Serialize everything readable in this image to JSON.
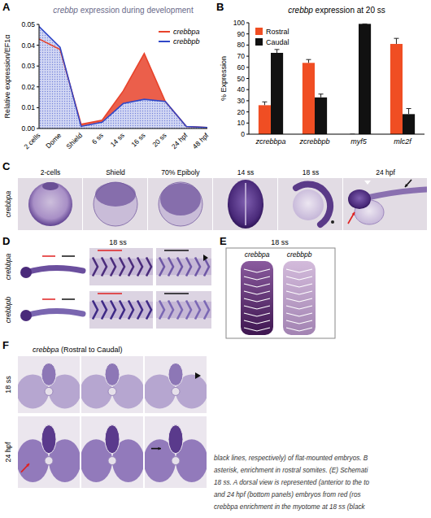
{
  "panel_letters": [
    "A",
    "B",
    "C",
    "D",
    "E",
    "F"
  ],
  "chart_data": [
    {
      "type": "area",
      "title": "crebbp expression during development",
      "y_label": "Relative expression/EF1α",
      "categories": [
        "2 cells",
        "Dome",
        "Shield",
        "6 ss",
        "14 ss",
        "16 ss",
        "20 ss",
        "24 hpf",
        "48 hpf"
      ],
      "series": [
        {
          "name": "crebbpa",
          "color": "#e8432b",
          "values": [
            0.043,
            0.038,
            0.002,
            0.004,
            0.018,
            0.036,
            0.013,
            0.001,
            0.0005
          ]
        },
        {
          "name": "crebbpb",
          "color": "#3048c8",
          "values": [
            0.049,
            0.039,
            0.001,
            0.003,
            0.012,
            0.014,
            0.013,
            0.001,
            0.0005
          ]
        }
      ],
      "ylim": [
        0,
        0.05
      ],
      "yticks": [
        {
          "value": 0,
          "label": "0.00"
        },
        0.01,
        0.02,
        0.03,
        0.04,
        0.05
      ],
      "legend": "upper right"
    },
    {
      "type": "bar",
      "title": "crebbp expression at 20 ss",
      "y_label": "% Expression",
      "categories": [
        "zcrebbpa",
        "zcrebbpb",
        "myf5",
        "mlc2f"
      ],
      "series": [
        {
          "name": "Rostral",
          "color": "#f04e23",
          "values": [
            26,
            64,
            0,
            81
          ],
          "errors": [
            3,
            3,
            0,
            5
          ]
        },
        {
          "name": "Caudal",
          "color": "#111111",
          "values": [
            73,
            33,
            99,
            18
          ],
          "errors": [
            3,
            3,
            0,
            5
          ]
        }
      ],
      "ylim": [
        0,
        100
      ],
      "yticks": [
        0,
        10,
        20,
        30,
        40,
        50,
        60,
        70,
        80,
        90,
        100
      ],
      "legend": "upper left"
    }
  ],
  "panel_c": {
    "gene": "crebbpa",
    "stages": [
      "2-cells",
      "Shield",
      "70% Epiboly",
      "14 ss",
      "18 ss",
      "24 hpf"
    ]
  },
  "panel_d": {
    "stage": "18 ss",
    "genes": [
      "crebbpa",
      "crebbpb"
    ]
  },
  "panel_e": {
    "stage": "18 ss",
    "genes": [
      "crebbpa",
      "crebbpb"
    ]
  },
  "panel_f": {
    "title": "crebbpa (Rostral to Caudal)",
    "stages": [
      "18 ss",
      "24 hpf"
    ]
  },
  "caption": [
    "black lines, respectively) of flat-mounted embryos. B",
    "asterisk, enrichment in rostral somites. (E) Schemati",
    "18 ss. A dorsal view is represented (anterior to the to",
    "and 24 hpf (bottom panels) embryos from red (ros",
    "crebbpa enrichment in the myotome at 18 ss (black"
  ]
}
